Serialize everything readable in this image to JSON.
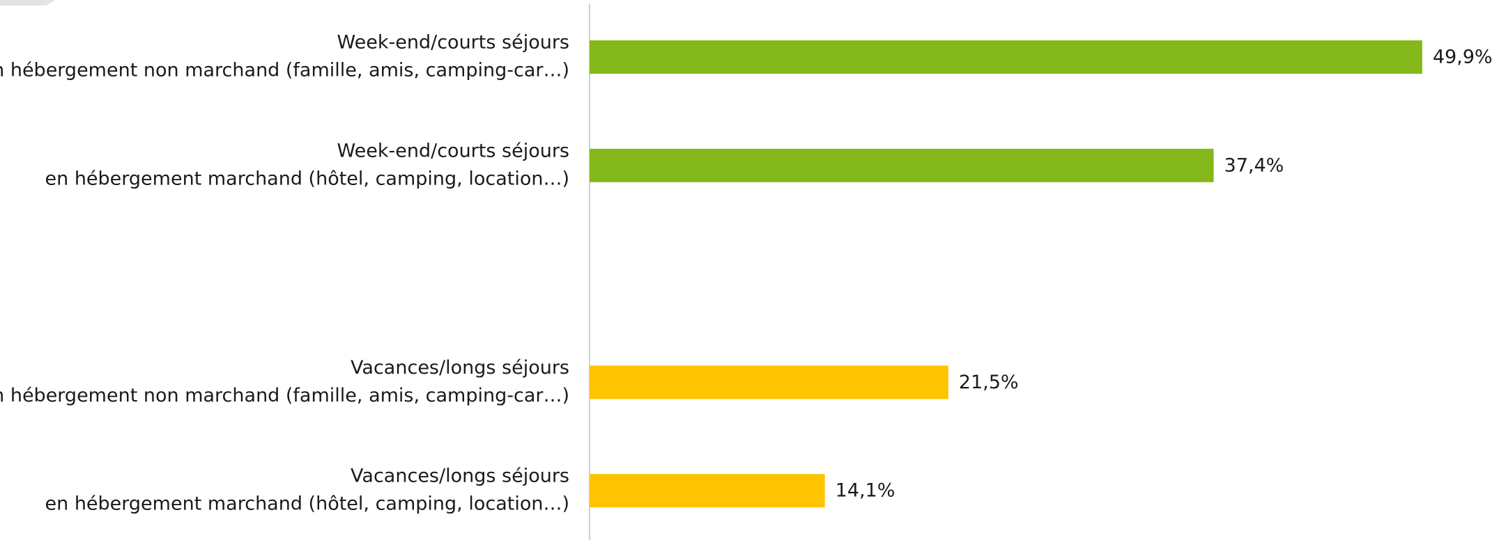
{
  "chart_data": {
    "type": "barh",
    "categories": [
      [
        "Week-end/courts séjours",
        "en hébergement non marchand (famille, amis, camping-car…)"
      ],
      [
        "Week-end/courts séjours",
        "en hébergement marchand (hôtel, camping, location…)"
      ],
      null,
      [
        "Vacances/longs séjours",
        "en hébergement non marchand (famille, amis, camping-car…)"
      ],
      [
        "Vacances/longs séjours",
        "en hébergement marchand (hôtel, camping, location…)"
      ]
    ],
    "values": [
      49.9,
      37.4,
      null,
      21.5,
      14.1
    ],
    "value_labels": [
      "49,9%",
      "37,4%",
      null,
      "21,5%",
      "14,1%"
    ],
    "colors": [
      "#84b81a",
      "#84b81a",
      null,
      "#ffc400",
      "#ffc400"
    ],
    "xlim": [
      0,
      54
    ]
  }
}
